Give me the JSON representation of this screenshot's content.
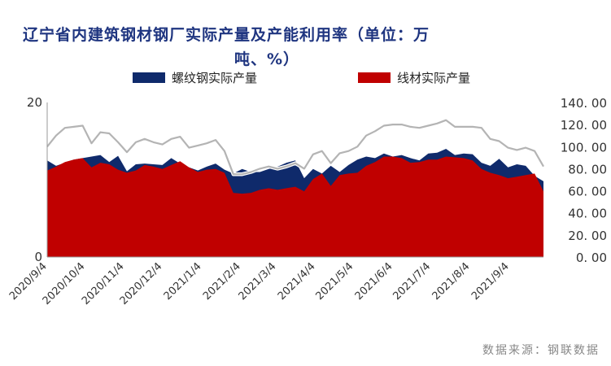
{
  "title_line1": "辽宁省内建筑钢材钢厂实际产量及产能利用率（单位：万",
  "title_line2": "吨、%）",
  "source": "数据来源：钢联数据",
  "colors": {
    "rebar": "#0f2a6b",
    "wire": "#c00000",
    "utilization": "#b4b4b4",
    "title": "#1f3580"
  },
  "chart_data": {
    "type": "area",
    "title": "辽宁省内建筑钢材钢厂实际产量及产能利用率（单位：万吨、%）",
    "legend_position": "top",
    "grid": false,
    "x": [
      "2020/9/4",
      "2020/9/11",
      "2020/9/18",
      "2020/9/25",
      "2020/10/2",
      "2020/10/9",
      "2020/10/16",
      "2020/10/23",
      "2020/10/30",
      "2020/11/6",
      "2020/11/13",
      "2020/11/20",
      "2020/11/27",
      "2020/12/4",
      "2020/12/11",
      "2020/12/18",
      "2020/12/25",
      "2021/1/1",
      "2021/1/8",
      "2021/1/15",
      "2021/1/22",
      "2021/1/29",
      "2021/2/5",
      "2021/2/12",
      "2021/2/19",
      "2021/2/26",
      "2021/3/5",
      "2021/3/12",
      "2021/3/19",
      "2021/3/26",
      "2021/4/2",
      "2021/4/9",
      "2021/4/16",
      "2021/4/23",
      "2021/4/30",
      "2021/5/7",
      "2021/5/14",
      "2021/5/21",
      "2021/5/28",
      "2021/6/4",
      "2021/6/11",
      "2021/6/18",
      "2021/6/25",
      "2021/7/2",
      "2021/7/9",
      "2021/7/16",
      "2021/7/23",
      "2021/7/30",
      "2021/8/6",
      "2021/8/13",
      "2021/8/20",
      "2021/8/27",
      "2021/9/3",
      "2021/9/10",
      "2021/9/17",
      "2021/9/24",
      "2021/10/1"
    ],
    "x_tick_labels": [
      "2020/9/4",
      "2020/10/4",
      "2020/11/4",
      "2020/12/4",
      "2021/1/4",
      "2021/2/4",
      "2021/3/4",
      "2021/4/4",
      "2021/5/4",
      "2021/6/4",
      "2021/7/4",
      "2021/8/4",
      "2021/9/4"
    ],
    "y_left": {
      "min": 0,
      "max": 20,
      "ticks": [
        "0",
        "20"
      ]
    },
    "y_right": {
      "min": 0,
      "max": 140,
      "ticks": [
        "0.00",
        "20.00",
        "40.00",
        "60.00",
        "80.00",
        "100.00",
        "120.00",
        "140.00"
      ]
    },
    "series": [
      {
        "name": "螺纹钢实际产量",
        "kind": "area",
        "axis": "left",
        "values": [
          12.5,
          11.8,
          12.2,
          12.6,
          12.8,
          13.0,
          13.2,
          12.3,
          13.1,
          11.1,
          12.0,
          12.1,
          12.0,
          11.9,
          12.8,
          12.1,
          11.6,
          11.2,
          11.7,
          12.1,
          11.3,
          10.8,
          11.4,
          11.0,
          11.0,
          11.4,
          11.7,
          12.2,
          12.5,
          10.2,
          11.4,
          10.8,
          11.8,
          11.0,
          11.9,
          12.6,
          13.0,
          12.8,
          13.4,
          13.0,
          13.2,
          12.8,
          12.5,
          13.4,
          13.5,
          14.0,
          13.2,
          13.4,
          13.3,
          12.2,
          11.8,
          12.7,
          11.6,
          12.0,
          11.8,
          10.5,
          9.8
        ]
      },
      {
        "name": "线材实际产量",
        "kind": "area",
        "axis": "left",
        "values": [
          11.2,
          11.7,
          12.3,
          12.6,
          12.8,
          11.6,
          12.2,
          12.0,
          11.3,
          10.9,
          11.2,
          11.9,
          11.7,
          11.4,
          11.9,
          12.4,
          11.6,
          11.0,
          11.3,
          11.4,
          10.9,
          8.3,
          8.2,
          8.3,
          8.7,
          8.9,
          8.7,
          8.9,
          9.1,
          8.5,
          10.1,
          10.8,
          9.2,
          10.6,
          10.8,
          10.9,
          11.8,
          12.3,
          13.0,
          13.0,
          12.8,
          12.2,
          12.3,
          12.6,
          12.6,
          13.0,
          12.9,
          12.8,
          12.5,
          11.4,
          10.9,
          10.6,
          10.2,
          10.4,
          10.6,
          10.8,
          8.5
        ]
      },
      {
        "name": "产能利用率",
        "kind": "line",
        "axis": "right",
        "values": [
          100,
          110,
          117,
          118,
          119,
          103,
          113,
          112,
          104,
          95,
          104,
          107,
          104,
          102,
          107,
          109,
          99,
          101,
          103,
          106,
          96,
          75,
          75,
          77,
          80,
          82,
          80,
          82,
          85,
          80,
          93,
          96,
          85,
          94,
          96,
          100,
          110,
          114,
          119,
          120,
          120,
          118,
          117,
          119,
          121,
          124,
          118,
          118,
          118,
          117,
          107,
          105,
          99,
          97,
          99,
          96,
          82
        ]
      }
    ]
  }
}
